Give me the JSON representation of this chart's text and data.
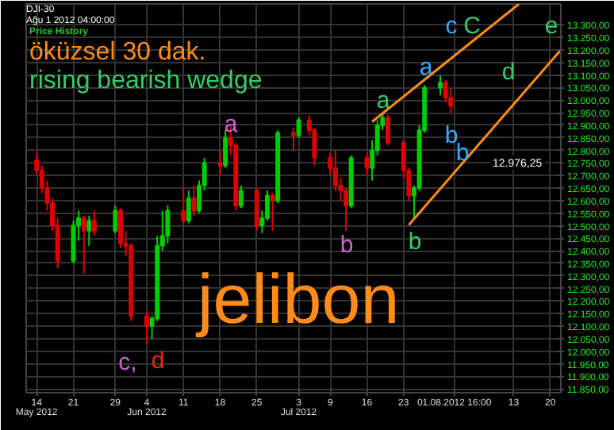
{
  "chart_data": {
    "type": "candlestick",
    "title": "DJI-30",
    "subtitle": "Ağu 1 2012 04:00:00",
    "x": [
      "2012-05-14",
      "2012-05-15",
      "2012-05-16",
      "2012-05-17",
      "2012-05-18",
      "2012-05-21",
      "2012-05-22",
      "2012-05-23",
      "2012-05-24",
      "2012-05-25",
      "2012-05-29",
      "2012-05-30",
      "2012-05-31",
      "2012-06-01",
      "2012-06-04",
      "2012-06-05",
      "2012-06-06",
      "2012-06-07",
      "2012-06-08",
      "2012-06-11",
      "2012-06-12",
      "2012-06-13",
      "2012-06-14",
      "2012-06-15",
      "2012-06-18",
      "2012-06-19",
      "2012-06-20",
      "2012-06-21",
      "2012-06-22",
      "2012-06-25",
      "2012-06-26",
      "2012-06-27",
      "2012-06-28",
      "2012-06-29",
      "2012-07-02",
      "2012-07-03",
      "2012-07-05",
      "2012-07-06",
      "2012-07-09",
      "2012-07-10",
      "2012-07-11",
      "2012-07-12",
      "2012-07-13",
      "2012-07-16",
      "2012-07-17",
      "2012-07-18",
      "2012-07-19",
      "2012-07-20",
      "2012-07-23",
      "2012-07-24",
      "2012-07-25",
      "2012-07-26",
      "2012-07-27",
      "2012-07-30",
      "2012-07-31",
      "2012-08-01"
    ],
    "ohlc": [
      [
        12760,
        12790,
        12700,
        12720
      ],
      [
        12720,
        12740,
        12630,
        12650
      ],
      [
        12650,
        12680,
        12560,
        12590
      ],
      [
        12590,
        12610,
        12480,
        12500
      ],
      [
        12500,
        12530,
        12330,
        12360
      ],
      [
        12360,
        12520,
        12350,
        12500
      ],
      [
        12500,
        12560,
        12440,
        12530
      ],
      [
        12530,
        12540,
        12310,
        12480
      ],
      [
        12480,
        12540,
        12420,
        12520
      ],
      [
        12520,
        12560,
        12460,
        12480
      ],
      [
        12480,
        12580,
        12470,
        12560
      ],
      [
        12560,
        12570,
        12410,
        12430
      ],
      [
        12430,
        12480,
        12380,
        12420
      ],
      [
        12420,
        12430,
        12120,
        12140
      ],
      [
        12140,
        12160,
        12030,
        12100
      ],
      [
        12100,
        12140,
        12050,
        12130
      ],
      [
        12130,
        12460,
        12120,
        12420
      ],
      [
        12420,
        12560,
        12400,
        12460
      ],
      [
        12460,
        12580,
        12430,
        12560
      ],
      [
        12560,
        12650,
        12500,
        12520
      ],
      [
        12520,
        12640,
        12510,
        12610
      ],
      [
        12610,
        12660,
        12540,
        12560
      ],
      [
        12560,
        12680,
        12550,
        12660
      ],
      [
        12660,
        12770,
        12640,
        12750
      ],
      [
        12750,
        12800,
        12700,
        12740
      ],
      [
        12740,
        12880,
        12730,
        12850
      ],
      [
        12850,
        12900,
        12780,
        12820
      ],
      [
        12820,
        12830,
        12560,
        12580
      ],
      [
        12580,
        12660,
        12570,
        12640
      ],
      [
        12640,
        12650,
        12480,
        12500
      ],
      [
        12500,
        12560,
        12470,
        12530
      ],
      [
        12530,
        12640,
        12520,
        12620
      ],
      [
        12620,
        12630,
        12480,
        12600
      ],
      [
        12600,
        12880,
        12590,
        12870
      ],
      [
        12870,
        12890,
        12800,
        12860
      ],
      [
        12860,
        12930,
        12850,
        12920
      ],
      [
        12920,
        12940,
        12860,
        12880
      ],
      [
        12880,
        12890,
        12740,
        12770
      ],
      [
        12770,
        12790,
        12700,
        12730
      ],
      [
        12730,
        12800,
        12640,
        12660
      ],
      [
        12660,
        12690,
        12600,
        12640
      ],
      [
        12640,
        12650,
        12480,
        12580
      ],
      [
        12580,
        12780,
        12570,
        12770
      ],
      [
        12770,
        12790,
        12700,
        12730
      ],
      [
        12730,
        12840,
        12680,
        12800
      ],
      [
        12800,
        12920,
        12780,
        12900
      ],
      [
        12900,
        12950,
        12880,
        12930
      ],
      [
        12930,
        12940,
        12820,
        12830
      ],
      [
        12830,
        12840,
        12690,
        12720
      ],
      [
        12720,
        12730,
        12600,
        12620
      ],
      [
        12620,
        12660,
        12530,
        12650
      ],
      [
        12650,
        12900,
        12640,
        12880
      ],
      [
        12880,
        13060,
        12870,
        13050
      ],
      [
        13050,
        13100,
        13020,
        13070
      ],
      [
        13070,
        13080,
        12990,
        13010
      ],
      [
        13010,
        13050,
        12950,
        12976.25
      ]
    ],
    "colors": [
      "#dd0000",
      "#dd0000",
      "#dd0000",
      "#dd0000",
      "#dd0000",
      "#00cc00",
      "#00cc00",
      "#dd0000",
      "#00cc00",
      "#dd0000",
      "#00cc00",
      "#dd0000",
      "#dd0000",
      "#dd0000",
      "#dd0000",
      "#00cc00",
      "#00cc00",
      "#00cc00",
      "#00cc00",
      "#dd0000",
      "#00cc00",
      "#dd0000",
      "#00cc00",
      "#00cc00",
      "#dd0000",
      "#00cc00",
      "#dd0000",
      "#dd0000",
      "#00cc00",
      "#dd0000",
      "#00cc00",
      "#00cc00",
      "#dd0000",
      "#00cc00",
      "#dd0000",
      "#00cc00",
      "#dd0000",
      "#dd0000",
      "#dd0000",
      "#dd0000",
      "#dd0000",
      "#dd0000",
      "#00cc00",
      "#dd0000",
      "#00cc00",
      "#00cc00",
      "#00cc00",
      "#dd0000",
      "#dd0000",
      "#dd0000",
      "#00cc00",
      "#00cc00",
      "#00cc00",
      "#00cc00",
      "#dd0000",
      "#dd0000"
    ],
    "series": [
      {
        "type": "line",
        "color": "#ff8c1a",
        "x": [
          "2012-07-17",
          "2012-08-14"
        ],
        "values": [
          12914,
          13383
        ]
      },
      {
        "type": "line",
        "color": "#ff8c1a",
        "x": [
          "2012-07-24",
          "2012-08-22"
        ],
        "values": [
          12503,
          13200
        ]
      }
    ],
    "xlim": [
      "2012-05-12",
      "2012-08-22"
    ],
    "ylim": [
      11835,
      13383
    ],
    "xticks": [
      {
        "value": "2012-05-14",
        "label": "14\nMay 2012"
      },
      {
        "value": "2012-05-21",
        "label": "21"
      },
      {
        "value": "2012-05-29",
        "label": "29"
      },
      {
        "value": "2012-06-04",
        "label": "4\nJun 2012"
      },
      {
        "value": "2012-06-11",
        "label": "11"
      },
      {
        "value": "2012-06-18",
        "label": "18"
      },
      {
        "value": "2012-06-25",
        "label": "25"
      },
      {
        "value": "2012-07-03",
        "label": "3\nJul 2012"
      },
      {
        "value": "2012-07-09",
        "label": "9"
      },
      {
        "value": "2012-07-16",
        "label": "16"
      },
      {
        "value": "2012-07-23",
        "label": "23"
      },
      {
        "value": "2012-08-01T16:00",
        "label": "01.08.2012 16:00"
      },
      {
        "value": "2012-08-13",
        "label": "13"
      },
      {
        "value": "2012-08-20",
        "label": "20"
      }
    ],
    "yticks": [
      {
        "value": 11850,
        "label": "11.850,00"
      },
      {
        "value": 11900,
        "label": "11.900,00"
      },
      {
        "value": 11950,
        "label": "11.950,00"
      },
      {
        "value": 12000,
        "label": "12.000,00"
      },
      {
        "value": 12050,
        "label": "12.050,00"
      },
      {
        "value": 12100,
        "label": "12.100,00"
      },
      {
        "value": 12150,
        "label": "12.150,00"
      },
      {
        "value": 12200,
        "label": "12.200,00"
      },
      {
        "value": 12250,
        "label": "12.250,00"
      },
      {
        "value": 12300,
        "label": "12.300,00"
      },
      {
        "value": 12350,
        "label": "12.350,00"
      },
      {
        "value": 12400,
        "label": "12.400,00"
      },
      {
        "value": 12450,
        "label": "12.450,00"
      },
      {
        "value": 12500,
        "label": "12.500,00"
      },
      {
        "value": 12550,
        "label": "12.550,00"
      },
      {
        "value": 12600,
        "label": "12.600,00"
      },
      {
        "value": 12650,
        "label": "12.650,00"
      },
      {
        "value": 12700,
        "label": "12.700,00"
      },
      {
        "value": 12750,
        "label": "12.750,00"
      },
      {
        "value": 12800,
        "label": "12.800,00"
      },
      {
        "value": 12850,
        "label": "12.850,00"
      },
      {
        "value": 12900,
        "label": "12.900,00"
      },
      {
        "value": 12950,
        "label": "12.950,00"
      },
      {
        "value": 13000,
        "label": "13.000,00"
      },
      {
        "value": 13050,
        "label": "13.050,00"
      },
      {
        "value": 13100,
        "label": "13.100,00"
      },
      {
        "value": 13150,
        "label": "13.150,00"
      },
      {
        "value": 13200,
        "label": "13.200,00"
      },
      {
        "value": 13250,
        "label": "13.250,00"
      },
      {
        "value": 13300,
        "label": "13.300,00"
      }
    ],
    "grid": true,
    "annotations": [
      "Price History",
      "öküzsel 30 dak.",
      "rising bearish wedge",
      "jelibon",
      "a",
      "b",
      "c,",
      "d",
      "a",
      "b",
      "a",
      "b",
      "b",
      "c",
      "C",
      "d",
      "e",
      "12.976,25"
    ]
  }
}
